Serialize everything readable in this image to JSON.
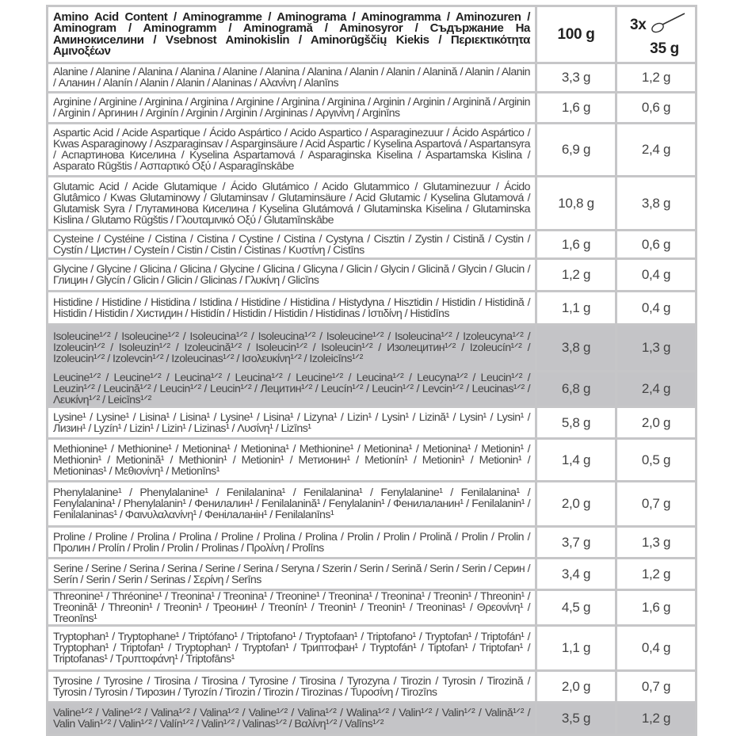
{
  "header": {
    "title": "Amino Acid Content / Aminogramme / Aminograma / Aminogramma / Aminozuren / Aminogram / Aminogramm / Aminogramă / Aminosyror / Съдържание На Аминокиселини / Vsebnost Aminokislin / Aminorūgščių Kiekis / Περιεκτικότητα Αμινοξέων",
    "col_100g": "100 g",
    "serving_count": "3x",
    "serving_icon": "scoop-icon",
    "serving_weight": "35 g"
  },
  "shade_color": "#c4c4c7",
  "rows": [
    {
      "name": "Alanine / Alanine / Alanina / Alanina / Alanine / Alanina / Alanina / Alanin / Alanin / Alanină / Alanin / Alanin / Аланин / Alanín / Alanin / Alanin / Alaninas / Αλανίνη / Alanīns",
      "per100": "3,3 g",
      "serving": "1,2 g",
      "shaded": false
    },
    {
      "name": "Arginine / Arginine / Arginina / Arginina / Arginine / Arginina / Arginina / Arginin / Arginin / Arginină / Arginin / Arginin / Аргинин / Arginín / Arginin / Arginin / Argininas / Αργινίνη / Arginīns",
      "per100": "1,6 g",
      "serving": "0,6 g",
      "shaded": false
    },
    {
      "name": "Aspartic Acid / Acide Aspartique / Ácido Aspártico / Acido Aspartico / Asparaginezuur / Ácido Aspártico / Kwas Asparaginowy / Aszparaginsav / Asparginsäure / Acid Aspartic / Kyselina Aspartová / Aspartansyra / Аспартинова Киселина / Kyselina Aspartamová / Asparaginska Kiselina / Aspartamska Kislina / Asparato Rūgštis / Ασπαρτικό Οξύ / Asparagīnskābe",
      "per100": "6,9 g",
      "serving": "2,4 g",
      "shaded": false
    },
    {
      "name": "Glutamic Acid / Acide Glutamique / Ácido Glutámico / Acido Glutammico / Glutaminezuur / Ácido Glutâmico / Kwas Glutaminowy / Glutaminsav / Glutaminsäure / Acid Glutamic / Kyselina Glutamová / Glutamisk Syra / Глутаминова Киселина / Kyselina Glutámová / Glutaminska Kiselina / Glutaminska Kislina / Glutamo Rūgštis / Γλουταμινικό Οξύ / Glutamīnskābe",
      "per100": "10,8 g",
      "serving": "3,8 g",
      "shaded": false
    },
    {
      "name": "Cysteine / Cystéine / Cistina / Cistina / Cystine / Cistina / Cystyna / Cisztin / Zystin / Cistină / Cystin / Cystín / Цистин / Cysteín / Cistin / Cistin / Cistinas / Κυστίνη / Cistīns",
      "per100": "1,6 g",
      "serving": "0,6 g",
      "shaded": false
    },
    {
      "name": "Glycine / Glycine / Glicina / Glicina / Glycine / Glicina / Glicyna / Glicin / Glycin / Glicină / Glycin / Glucin / Глицин / Glycín / Glicin / Glicin / Glicinas / Γλυκίνη / Glicīns",
      "per100": "1,2 g",
      "serving": "0,4 g",
      "shaded": false
    },
    {
      "name": "Histidine / Histidine / Histidina / Istidina / Histidine / Histidina / Histydyna / Hisztidin / Histidin / Histidină / Histidin / Histidin / Хистидин / Histidín / Histidin / Histidin / Histidinas / Ιστιδίνη / Histidīns",
      "per100": "1,1 g",
      "serving": "0,4 g",
      "shaded": false
    },
    {
      "name": "Isoleucine¹ᐟ² / Isoleucine¹ᐟ² / Isoleucina¹ᐟ² / Isoleucina¹ᐟ² / Isoleucine¹ᐟ² / Isoleucina¹ᐟ² / Izoleucyna¹ᐟ² / Izoleucin¹ᐟ² / Isoleuzin¹ᐟ² / Izoleucină¹ᐟ² / Isoleucin¹ᐟ² / Isoleucin¹ᐟ² / Изолецитин¹ᐟ² / Izoleucín¹ᐟ² / Izoleucin¹ᐟ² / Izolevcin¹ᐟ² / Izoleucinas¹ᐟ² / Ισολευκίνη¹ᐟ² / Izoleicīns¹ᐟ²",
      "per100": "3,8 g",
      "serving": "1,3 g",
      "shaded": true
    },
    {
      "name": "Leucine¹ᐟ² / Leucine¹ᐟ² / Leucina¹ᐟ² / Leucina¹ᐟ² / Leucine¹ᐟ² / Leucina¹ᐟ² / Leucyna¹ᐟ² / Leucin¹ᐟ² / Leuzin¹ᐟ² / Leucină¹ᐟ² / Leucin¹ᐟ² / Leucin¹ᐟ² / Лецитин¹ᐟ² / Leucín¹ᐟ² / Leucin¹ᐟ² / Levcin¹ᐟ² / Leucinas¹ᐟ² / Λευκίνη¹ᐟ² / Leicīns¹ᐟ²",
      "per100": "6,8 g",
      "serving": "2,4 g",
      "shaded": true
    },
    {
      "name": "Lysine¹ / Lysine¹ / Lisina¹ / Lisina¹ / Lysine¹ / Lisina¹ / Lizyna¹ / Lizin¹ / Lysin¹ / Lizină¹ / Lysin¹ / Lysin¹ / Лизин¹ / Lyzín¹ / Lizin¹ / Lizin¹ / Lizinas¹ / Λυσίνη¹ / Lizīns¹",
      "per100": "5,8 g",
      "serving": "2,0 g",
      "shaded": false
    },
    {
      "name": "Methionine¹ / Methionine¹ / Metionina¹ / Metionina¹ / Methionine¹ / Metionina¹ / Metionina¹ / Metionin¹ / Methionin¹ / Metionină¹ / Methionin¹ / Metionin¹ / Метионин¹ / Metionín¹ / Metionin¹ / Metionin¹ / Metioninas¹ / Μεθιονίνη¹ / Metionīns¹",
      "per100": "1,4 g",
      "serving": "0,5 g",
      "shaded": false
    },
    {
      "name": "Phenylalanine¹ / Phenylalanine¹ / Fenilalanina¹ / Fenilalanina¹ / Fenylalanine¹ / Fenilalanina¹ / Fenylalanina¹ / Phenylalanin¹ / Фенилалин¹ / Fenilalanină¹ / Fenylalanin¹ / Фенилаланин¹ / Fenilalanin¹ / Fenilalaninas¹ / Φαινυλαλανίνη¹ / Фенілаланін¹ / Fenilalanīns¹",
      "per100": "2,0 g",
      "serving": "0,7 g",
      "shaded": false
    },
    {
      "name": "Proline / Proline / Prolina / Prolina / Proline / Prolina / Prolina / Prolin / Prolin / Prolină / Prolin / Prolin / Пролин / Prolín / Prolin / Prolin / Prolinas / Προλίνη / Prolīns",
      "per100": "3,7 g",
      "serving": "1,3 g",
      "shaded": false
    },
    {
      "name": "Serine / Serine / Serina / Serina / Serine / Serina / Seryna / Szerin / Serin / Serină / Serin / Serin / Серин / Serín / Serin / Serin / Serinas / Σερίνη / Serīns",
      "per100": "3,4 g",
      "serving": "1,2 g",
      "shaded": false
    },
    {
      "name": "Threonine¹ / Thréonine¹ / Treonina¹ / Treonina¹ / Treonine¹ / Treonina¹ / Treonina¹ / Treonin¹ / Threonin¹ / Treonină¹ / Threonin¹ / Treonin¹ / Треонин¹ / Treonín¹ / Treonin¹ / Treonin¹ / Treoninas¹ / Θρεονίνη¹ / Treonīns¹",
      "per100": "4,5 g",
      "serving": "1,6 g",
      "shaded": false
    },
    {
      "name": "Tryptophan¹ / Tryptophane¹ / Triptófano¹ / Triptofano¹ / Tryptofaan¹ / Triptofano¹ / Tryptofan¹ / Triptofán¹ / Tryptophan¹ / Triptofan¹ / Tryptophan¹ / Tryptofan¹ / Триптофан¹ / Tryptofán¹ / Tiptofan¹ / Triptofan¹ / Triptofanas¹ / Τρυπτοφάνη¹ / Triptofāns¹",
      "per100": "1,1 g",
      "serving": "0,4 g",
      "shaded": false
    },
    {
      "name": "Tyrosine / Tyrosine / Tirosina / Tirosina / Tyrosine / Tirosina / Tyrozyna / Tirozin / Tyrosin / Tirozină / Tyrosin / Tyrosin / Тирозин / Tyrozín / Tirozin / Tirozin / Tirozinas / Τυροσίνη / Tirozīns",
      "per100": "2,0 g",
      "serving": "0,7 g",
      "shaded": false
    },
    {
      "name": "Valine¹ᐟ² / Valine¹ᐟ² / Valina¹ᐟ² / Valina¹ᐟ² / Valine¹ᐟ² / Valina¹ᐟ² / Walina¹ᐟ² / Valin¹ᐟ² / Valin¹ᐟ² / Valină¹ᐟ² / Valin Valin¹ᐟ² / Valin¹ᐟ² / Valín¹ᐟ² / Valin¹ᐟ² / Valinas¹ᐟ² / Βαλίνη¹ᐟ² / Valīns¹ᐟ²",
      "per100": "3,5 g",
      "serving": "1,2 g",
      "shaded": true
    }
  ]
}
